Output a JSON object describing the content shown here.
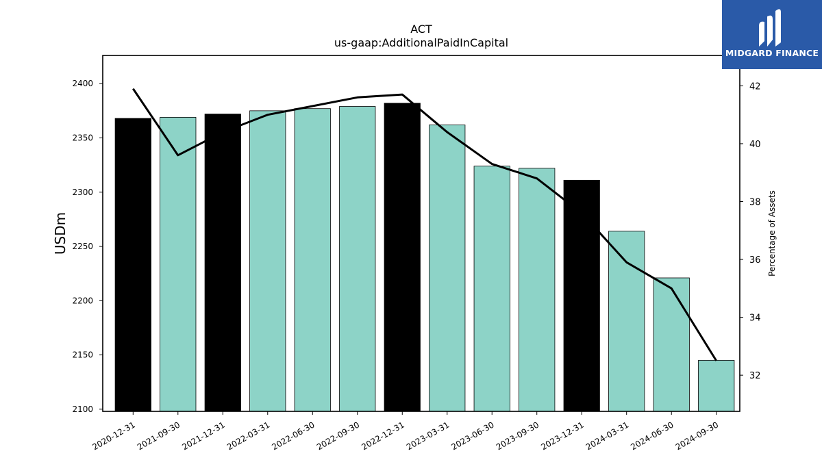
{
  "chart_data": {
    "type": "bar",
    "title": "ACT",
    "subtitle": "us-gaap:AdditionalPaidInCapital",
    "ylabel": "USDm",
    "y2label": "Percentage of Assets",
    "categories": [
      "2020-12-31",
      "2021-09-30",
      "2021-12-31",
      "2022-03-31",
      "2022-06-30",
      "2022-09-30",
      "2022-12-31",
      "2023-03-31",
      "2023-06-30",
      "2023-09-30",
      "2023-12-31",
      "2024-03-31",
      "2024-06-30",
      "2024-09-30"
    ],
    "values": [
      2368,
      2369,
      2372,
      2375,
      2377,
      2379,
      2382,
      2362,
      2324,
      2322,
      2311,
      2264,
      2221,
      2145
    ],
    "bar_colors": [
      "#000000",
      "#8dd3c7",
      "#000000",
      "#8dd3c7",
      "#8dd3c7",
      "#8dd3c7",
      "#000000",
      "#8dd3c7",
      "#8dd3c7",
      "#8dd3c7",
      "#000000",
      "#8dd3c7",
      "#8dd3c7",
      "#8dd3c7"
    ],
    "line_values": [
      41.9,
      39.6,
      40.4,
      41.0,
      41.3,
      41.6,
      41.7,
      40.4,
      39.3,
      38.8,
      37.6,
      35.9,
      35.0,
      32.5
    ],
    "line_color": "#000000",
    "ylim": [
      2098,
      2426
    ],
    "yticks": [
      2100,
      2150,
      2200,
      2250,
      2300,
      2350,
      2400
    ],
    "y2lim": [
      30.75,
      43.05
    ],
    "y2ticks": [
      32,
      34,
      36,
      38,
      40,
      42
    ],
    "grid": false
  },
  "logo": {
    "text": "MIDGARD FINANCE",
    "color": "#2a5aa8"
  }
}
